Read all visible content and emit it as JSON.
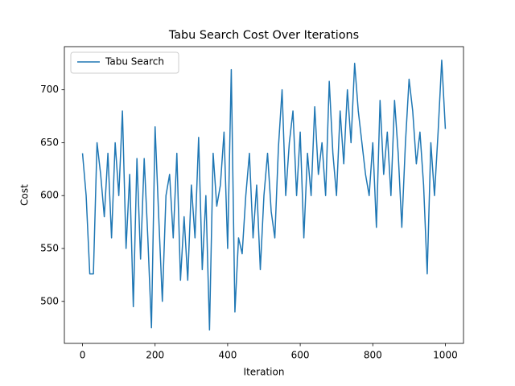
{
  "chart_data": {
    "type": "line",
    "title": "Tabu Search Cost Over Iterations",
    "xlabel": "Iteration",
    "ylabel": "Cost",
    "x": [
      0,
      10,
      20,
      30,
      40,
      50,
      60,
      70,
      80,
      90,
      100,
      110,
      120,
      130,
      140,
      150,
      160,
      170,
      180,
      190,
      200,
      210,
      220,
      230,
      240,
      250,
      260,
      270,
      280,
      290,
      300,
      310,
      320,
      330,
      340,
      350,
      360,
      370,
      380,
      390,
      400,
      410,
      420,
      430,
      440,
      450,
      460,
      470,
      480,
      490,
      500,
      510,
      520,
      530,
      540,
      550,
      560,
      570,
      580,
      590,
      600,
      610,
      620,
      630,
      640,
      650,
      660,
      670,
      680,
      690,
      700,
      710,
      720,
      730,
      740,
      750,
      760,
      770,
      780,
      790,
      800,
      810,
      820,
      830,
      840,
      850,
      860,
      870,
      880,
      890,
      900,
      910,
      920,
      930,
      940,
      950,
      960,
      970,
      980,
      990,
      1000
    ],
    "series": [
      {
        "name": "Tabu Search",
        "color": "#1f77b4",
        "values": [
          640,
          600,
          526,
          526,
          650,
          620,
          580,
          640,
          560,
          650,
          600,
          680,
          550,
          620,
          495,
          635,
          540,
          635,
          560,
          475,
          665,
          580,
          500,
          600,
          620,
          560,
          640,
          520,
          580,
          520,
          610,
          560,
          655,
          530,
          600,
          473,
          640,
          590,
          610,
          660,
          550,
          719,
          490,
          560,
          545,
          600,
          640,
          560,
          610,
          530,
          600,
          640,
          585,
          560,
          646,
          700,
          600,
          650,
          680,
          600,
          660,
          560,
          640,
          600,
          684,
          620,
          650,
          600,
          708,
          640,
          600,
          680,
          630,
          700,
          650,
          725,
          680,
          650,
          620,
          600,
          650,
          570,
          690,
          620,
          660,
          600,
          690,
          640,
          570,
          650,
          710,
          680,
          630,
          660,
          610,
          526,
          650,
          600,
          660,
          728,
          663
        ]
      }
    ],
    "xlim": [
      -50,
      1050
    ],
    "ylim": [
      460.3,
      740.8
    ],
    "xticks": [
      0,
      200,
      400,
      600,
      800,
      1000
    ],
    "yticks": [
      500,
      550,
      600,
      650,
      700
    ],
    "legend": "upper left"
  }
}
